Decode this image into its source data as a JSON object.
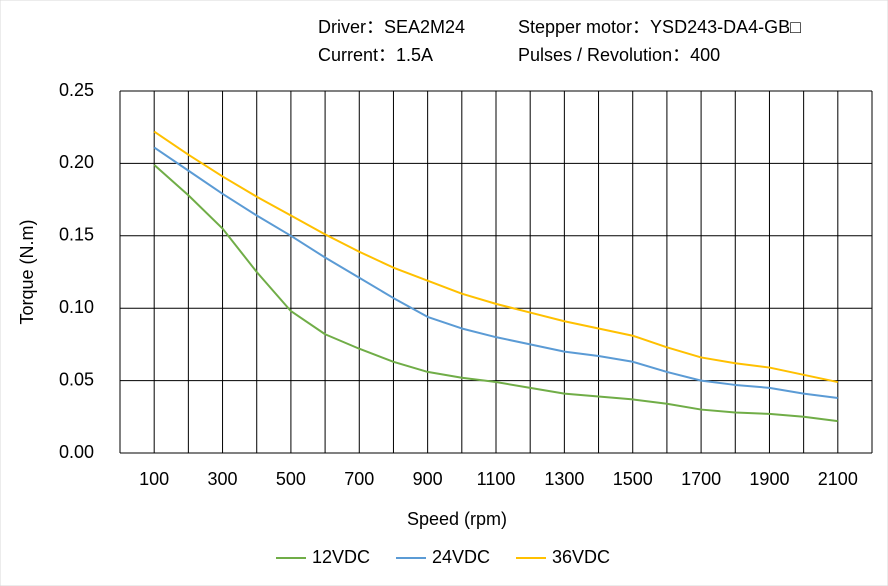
{
  "chart_data": {
    "type": "line",
    "annotations": [
      "Driver：SEA2M24",
      "Stepper motor：YSD243-DA4-GB□",
      "Current：1.5A",
      "Pulses / Revolution：400"
    ],
    "x_label": "Speed (rpm)",
    "y_label": "Torque (N.m)",
    "x": [
      100,
      200,
      300,
      400,
      500,
      600,
      700,
      800,
      900,
      1000,
      1100,
      1200,
      1300,
      1400,
      1500,
      1600,
      1700,
      1800,
      1900,
      2000,
      2100
    ],
    "series": [
      {
        "name": "12VDC",
        "color": "#70ad47",
        "values": [
          0.199,
          0.178,
          0.155,
          0.125,
          0.098,
          0.082,
          0.072,
          0.063,
          0.056,
          0.052,
          0.049,
          0.045,
          0.041,
          0.039,
          0.037,
          0.034,
          0.03,
          0.028,
          0.027,
          0.025,
          0.022
        ]
      },
      {
        "name": "24VDC",
        "color": "#5b9bd5",
        "values": [
          0.211,
          0.195,
          0.179,
          0.164,
          0.15,
          0.135,
          0.121,
          0.107,
          0.094,
          0.086,
          0.08,
          0.075,
          0.07,
          0.067,
          0.063,
          0.056,
          0.05,
          0.047,
          0.045,
          0.041,
          0.038
        ]
      },
      {
        "name": "36VDC",
        "color": "#ffc000",
        "values": [
          0.222,
          0.206,
          0.191,
          0.177,
          0.164,
          0.151,
          0.139,
          0.128,
          0.119,
          0.11,
          0.103,
          0.097,
          0.091,
          0.086,
          0.081,
          0.073,
          0.066,
          0.062,
          0.059,
          0.054,
          0.049
        ]
      }
    ],
    "xlim": [
      0,
      2200
    ],
    "xticks": [
      100,
      300,
      500,
      700,
      900,
      1100,
      1300,
      1500,
      1700,
      1900,
      2100
    ],
    "xminor_ticks": [
      200,
      400,
      600,
      800,
      1000,
      1200,
      1400,
      1600,
      1800,
      2000
    ],
    "ylim": [
      0,
      0.25
    ],
    "yticks": [
      {
        "value": 0,
        "label": "0.00"
      },
      0.05,
      {
        "value": 0.1,
        "label": "0.10"
      },
      0.15,
      {
        "value": 0.2,
        "label": "0.20"
      },
      0.25
    ],
    "grid": true,
    "legend": "bottom"
  }
}
